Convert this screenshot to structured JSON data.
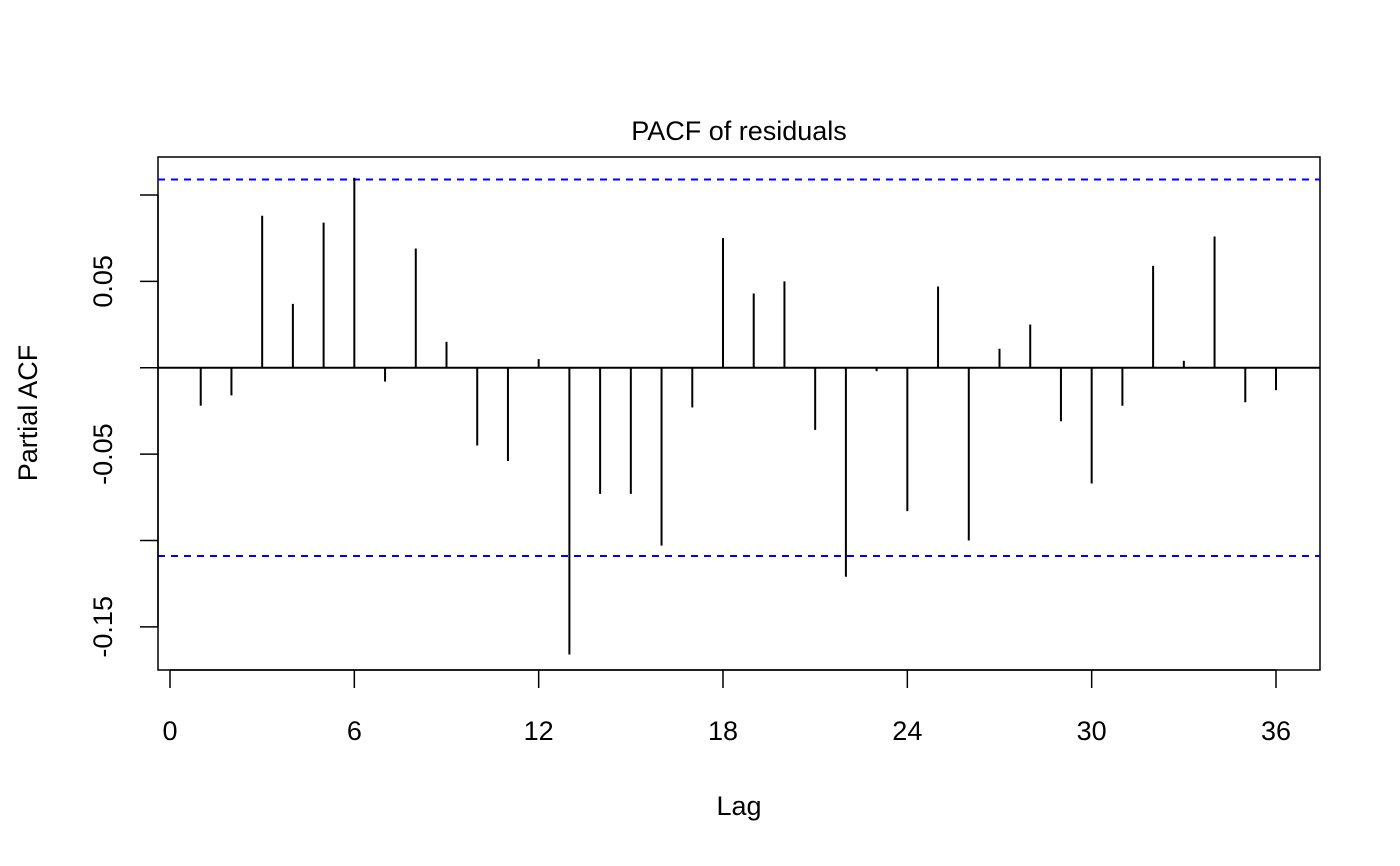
{
  "chart_data": {
    "type": "bar",
    "title": "PACF of residuals",
    "xlabel": "Lag",
    "ylabel": "Partial ACF",
    "xlim": [
      0,
      36
    ],
    "ylim": [
      -0.175,
      0.122
    ],
    "x_ticks": [
      0,
      6,
      12,
      18,
      24,
      30,
      36
    ],
    "y_ticks": [
      0.05,
      -0.05,
      -0.15
    ],
    "y_tick_labels": [
      "0.05",
      "-0.05",
      "-0.15"
    ],
    "confidence_bounds": [
      0.109,
      -0.109
    ],
    "confidence_color": "#0000ff",
    "bar_color": "#000000",
    "grid": false,
    "lags": [
      1,
      2,
      3,
      4,
      5,
      6,
      7,
      8,
      9,
      10,
      11,
      12,
      13,
      14,
      15,
      16,
      17,
      18,
      19,
      20,
      21,
      22,
      23,
      24,
      25,
      26,
      27,
      28,
      29,
      30,
      31,
      32,
      33,
      34,
      35,
      36
    ],
    "values": [
      -0.022,
      -0.016,
      0.088,
      0.037,
      0.084,
      0.11,
      -0.008,
      0.069,
      0.015,
      -0.045,
      -0.054,
      0.005,
      -0.166,
      -0.073,
      -0.073,
      -0.103,
      -0.023,
      0.075,
      0.043,
      0.05,
      -0.036,
      -0.121,
      -0.002,
      -0.083,
      0.047,
      -0.1,
      0.011,
      0.025,
      -0.031,
      -0.067,
      -0.022,
      0.059,
      0.004,
      0.076,
      -0.02,
      -0.013
    ]
  }
}
